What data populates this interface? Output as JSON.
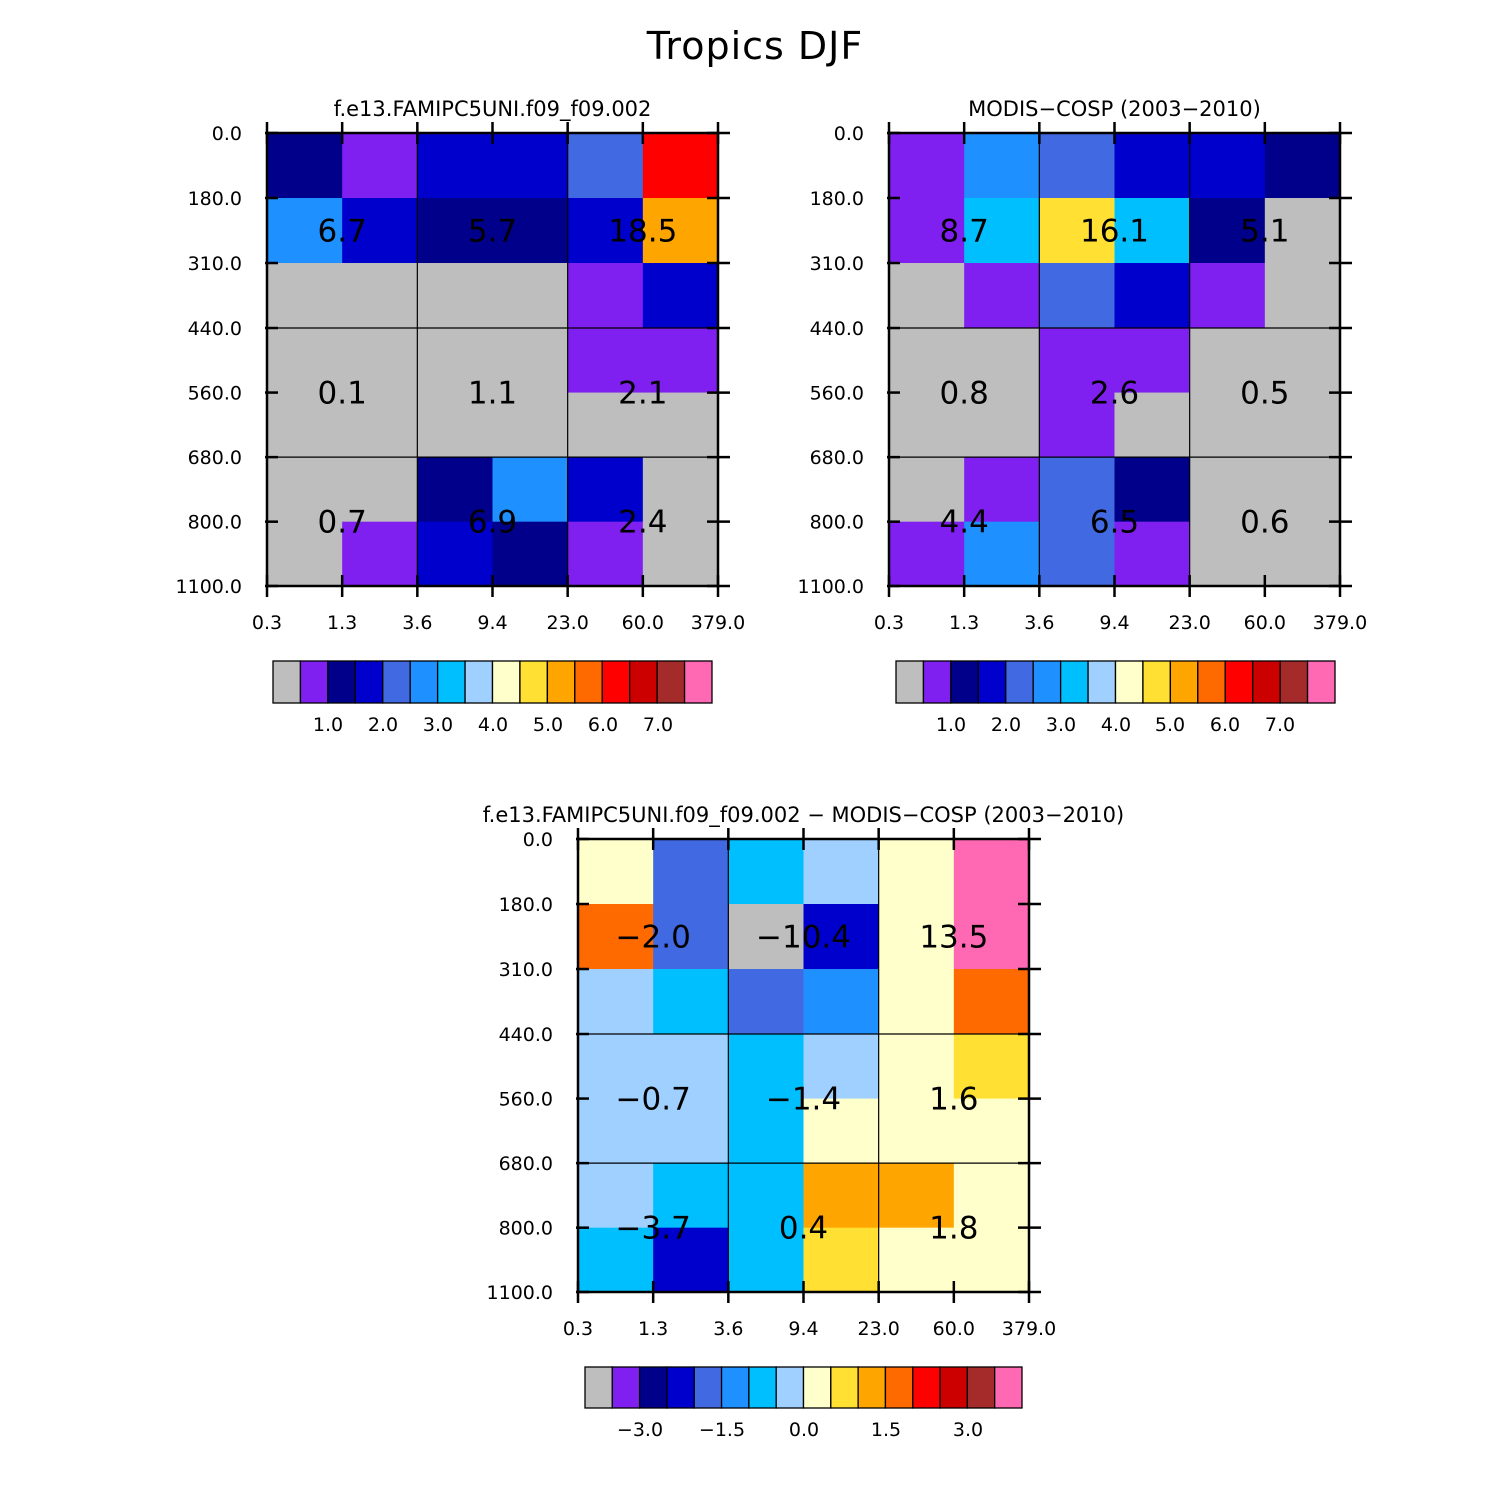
{
  "page_title": "Tropics DJF",
  "palettes": {
    "colors": [
      "#bebebe",
      "#8020f0",
      "#00008b",
      "#0000cd",
      "#4169e1",
      "#1e90ff",
      "#00bfff",
      "#a0d0ff",
      "#ffffcc",
      "#ffe033",
      "#ffa500",
      "#ff6a00",
      "#ff0000",
      "#cd0000",
      "#a52a2a",
      "#ff69b4"
    ]
  },
  "chart_data": [
    {
      "type": "heatmap",
      "title": "f.e13.FAMIPC5UNI.f09_f09.002",
      "x_tick_labels": [
        "0.3",
        "1.3",
        "3.6",
        "9.4",
        "23.0",
        "60.0",
        "379.0"
      ],
      "y_tick_labels": [
        "0.0",
        "180.0",
        "310.0",
        "440.0",
        "560.0",
        "680.0",
        "800.0",
        "1100.0"
      ],
      "cells": [
        [
          2,
          1,
          3,
          3,
          4,
          12
        ],
        [
          5,
          3,
          2,
          2,
          3,
          10
        ],
        [
          0,
          0,
          0,
          0,
          1,
          3
        ],
        [
          0,
          0,
          0,
          0,
          1,
          1
        ],
        [
          0,
          0,
          0,
          0,
          0,
          0
        ],
        [
          0,
          0,
          2,
          5,
          3,
          0
        ],
        [
          0,
          1,
          3,
          2,
          1,
          0
        ]
      ],
      "block_labels": [
        [
          "6.7",
          "5.7",
          "18.5"
        ],
        [
          "0.1",
          "1.1",
          "2.1"
        ],
        [
          "0.7",
          "6.9",
          "2.4"
        ]
      ],
      "colorbar_tick_labels": [
        "1.0",
        "2.0",
        "3.0",
        "4.0",
        "5.0",
        "6.0",
        "7.0"
      ]
    },
    {
      "type": "heatmap",
      "title": "MODIS-COSP (2003-2010)",
      "x_tick_labels": [
        "0.3",
        "1.3",
        "3.6",
        "9.4",
        "23.0",
        "60.0",
        "379.0"
      ],
      "y_tick_labels": [
        "0.0",
        "180.0",
        "310.0",
        "440.0",
        "560.0",
        "680.0",
        "800.0",
        "1100.0"
      ],
      "cells": [
        [
          1,
          5,
          4,
          3,
          3,
          2
        ],
        [
          1,
          6,
          9,
          6,
          2,
          0
        ],
        [
          0,
          1,
          4,
          3,
          1,
          0
        ],
        [
          0,
          0,
          1,
          1,
          0,
          0
        ],
        [
          0,
          0,
          1,
          0,
          0,
          0
        ],
        [
          0,
          1,
          4,
          2,
          0,
          0
        ],
        [
          1,
          5,
          4,
          1,
          0,
          0
        ]
      ],
      "block_labels": [
        [
          "8.7",
          "16.1",
          "5.1"
        ],
        [
          "0.8",
          "2.6",
          "0.5"
        ],
        [
          "4.4",
          "6.5",
          "0.6"
        ]
      ],
      "colorbar_tick_labels": [
        "1.0",
        "2.0",
        "3.0",
        "4.0",
        "5.0",
        "6.0",
        "7.0"
      ]
    },
    {
      "type": "heatmap",
      "title": "f.e13.FAMIPC5UNI.f09_f09.002 - MODIS-COSP (2003-2010)",
      "x_tick_labels": [
        "0.3",
        "1.3",
        "3.6",
        "9.4",
        "23.0",
        "60.0",
        "379.0"
      ],
      "y_tick_labels": [
        "0.0",
        "180.0",
        "310.0",
        "440.0",
        "560.0",
        "680.0",
        "800.0",
        "1100.0"
      ],
      "cells": [
        [
          8,
          4,
          6,
          7,
          8,
          15
        ],
        [
          11,
          4,
          0,
          3,
          8,
          15
        ],
        [
          7,
          6,
          4,
          5,
          8,
          11
        ],
        [
          7,
          7,
          6,
          7,
          8,
          9
        ],
        [
          7,
          7,
          6,
          8,
          8,
          8
        ],
        [
          7,
          6,
          6,
          10,
          10,
          8
        ],
        [
          6,
          3,
          6,
          9,
          8,
          8
        ]
      ],
      "block_labels": [
        [
          "-2.0",
          "-10.4",
          "13.5"
        ],
        [
          "-0.7",
          "-1.4",
          "1.6"
        ],
        [
          "-3.7",
          "0.4",
          "1.8"
        ]
      ],
      "colorbar_tick_labels": [
        "-3.0",
        "-1.5",
        "0.0",
        "1.5",
        "3.0"
      ]
    }
  ]
}
